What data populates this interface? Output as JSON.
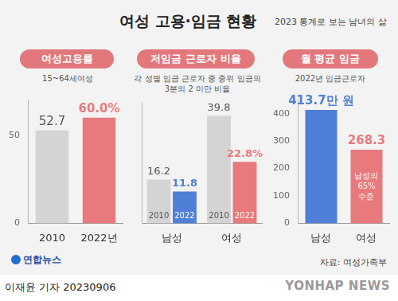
{
  "title": "여성 고용·임금 현황",
  "subtitle": "2023 통계로 보는 남녀의 삶",
  "source": "자료: 여성가족부",
  "byline": "이재윤 기자 20230906",
  "logo": "연합뉴스",
  "watermark": "YONHAP NEWS",
  "chart_data": [
    {
      "type": "bar",
      "title": "여성고용률",
      "subtitle": "15~64세여성",
      "categories": [
        "2010",
        "2022년"
      ],
      "values": [
        52.7,
        60.0
      ],
      "value_labels": [
        "52.7",
        "60.0%"
      ],
      "colors": [
        "#d4d4d4",
        "#e8797c"
      ],
      "ylim": [
        0,
        70
      ],
      "yticks": [
        0,
        50
      ],
      "grid": false,
      "data_labels": true
    },
    {
      "type": "bar",
      "title": "저임금 근로자 비율",
      "subtitle": "각 성별 임금 근로자 중 중위 임금의 3분의 2 미만 비율",
      "categories": [
        "남성",
        "여성"
      ],
      "series": [
        {
          "name": "2010",
          "colors": [
            "#d4d4d4",
            "#d4d4d4"
          ],
          "values": [
            16.2,
            39.8
          ],
          "value_labels": [
            "16.2",
            "39.8"
          ]
        },
        {
          "name": "2022",
          "colors": [
            "#4f7fd6",
            "#e8797c"
          ],
          "values": [
            11.8,
            22.8
          ],
          "value_labels": [
            "11.8",
            "22.8%"
          ]
        }
      ],
      "ylim": [
        0,
        45
      ],
      "tick_labels": "x",
      "grid": false,
      "data_labels": true
    },
    {
      "type": "bar",
      "title": "월 평균 임금",
      "subtitle": "2022년 임금근로자",
      "categories": [
        "남성",
        "여성"
      ],
      "values": [
        413.7,
        268.3
      ],
      "value_labels": [
        "413.7만 원",
        "268.3"
      ],
      "colors": [
        "#4f7fd6",
        "#e8797c"
      ],
      "annotation": "남성의 65% 수준",
      "ylim": [
        0,
        450
      ],
      "yticks": [
        0,
        100,
        200,
        300,
        400
      ],
      "grid": false,
      "data_labels": true
    }
  ]
}
